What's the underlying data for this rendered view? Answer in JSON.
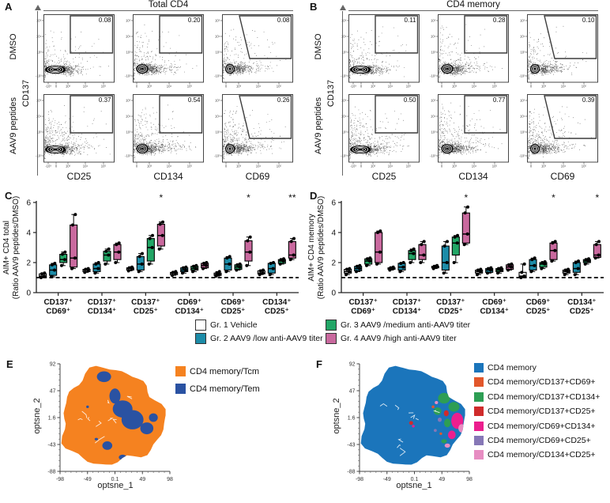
{
  "flow_panels": [
    {
      "label": "A",
      "title": "Total CD4",
      "y_marker": "CD137",
      "row_labels": [
        "DMSO",
        "AAV9 peptides"
      ],
      "x_labels": [
        "CD25",
        "CD134",
        "CD69"
      ],
      "gate_values": [
        [
          "0.08",
          "0.20",
          "0.08"
        ],
        [
          "0.37",
          "0.54",
          "0.26"
        ]
      ],
      "y_ticks": [
        "10⁵",
        "10⁴",
        "10³",
        "-10³"
      ],
      "x_ticks_first": [
        "-10³",
        "0",
        "10³",
        "10⁴",
        "10⁵"
      ],
      "x_ticks_rest": [
        "0",
        "10³",
        "10⁴",
        "10⁵"
      ]
    },
    {
      "label": "B",
      "title": "CD4 memory",
      "y_marker": "CD137",
      "row_labels": [
        "DMSO",
        "AAV9 peptides"
      ],
      "x_labels": [
        "CD25",
        "CD134",
        "CD69"
      ],
      "gate_values": [
        [
          "0.11",
          "0.28",
          "0.10"
        ],
        [
          "0.50",
          "0.77",
          "0.39"
        ]
      ],
      "y_ticks": [
        "10⁵",
        "10⁴",
        "10³",
        "-10³"
      ],
      "x_ticks_first": [
        "-10³",
        "0",
        "10³",
        "10⁴",
        "10⁵"
      ],
      "x_ticks_rest": [
        "0",
        "10³",
        "10⁴",
        "10⁵"
      ]
    }
  ],
  "group_legend": {
    "items": [
      {
        "label": "Gr. 1 Vehicle",
        "color": "#ffffff"
      },
      {
        "label": "Gr. 2 AAV9 /low anti-AAV9 titer",
        "color": "#1d8ca8"
      },
      {
        "label": "Gr. 3 AAV9 /medium anti-AAV9 titer",
        "color": "#22a666"
      },
      {
        "label": "Gr. 4 AAV9 /high anti-AAV9 titer",
        "color": "#c9699e"
      }
    ]
  },
  "chart_data": [
    {
      "type": "box",
      "panel": "C",
      "ylabel_line1": "AIM+ CD4 total",
      "ylabel_line2": "(Ratio AAV9 peptides/DMSO)",
      "ylim": [
        0,
        6
      ],
      "yticks": [
        0,
        2,
        4,
        6
      ],
      "reference_line": 1,
      "categories": [
        [
          "CD137⁺",
          "CD69⁺"
        ],
        [
          "CD137⁺",
          "CD134⁺"
        ],
        [
          "CD137⁺",
          "CD25⁺"
        ],
        [
          "CD69⁺",
          "CD134⁺"
        ],
        [
          "CD69⁺",
          "CD25⁺"
        ],
        [
          "CD134⁺",
          "CD25⁺"
        ]
      ],
      "series": [
        {
          "name": "Gr. 1 Vehicle",
          "color": "#ffffff",
          "boxes": [
            [
              1.0,
              1.05,
              1.1,
              1.25,
              1.3
            ],
            [
              1.35,
              1.4,
              1.5,
              1.55,
              1.6
            ],
            [
              1.45,
              1.5,
              1.6,
              1.65,
              1.7
            ],
            [
              1.15,
              1.2,
              1.3,
              1.35,
              1.4
            ],
            [
              1.1,
              1.15,
              1.2,
              1.3,
              1.4
            ],
            [
              1.2,
              1.25,
              1.3,
              1.45,
              1.5
            ]
          ]
        },
        {
          "name": "Gr. 2 AAV9 /low anti-AAV9 titer",
          "color": "#1d8ca8",
          "boxes": [
            [
              1.05,
              1.15,
              1.5,
              1.85,
              1.95
            ],
            [
              1.3,
              1.4,
              1.6,
              1.9,
              2.0
            ],
            [
              1.4,
              1.5,
              1.9,
              2.4,
              2.6
            ],
            [
              1.3,
              1.4,
              1.5,
              1.65,
              1.7
            ],
            [
              1.4,
              1.5,
              1.9,
              2.3,
              2.4
            ],
            [
              1.2,
              1.3,
              1.6,
              1.95,
              2.0
            ]
          ]
        },
        {
          "name": "Gr. 3 AAV9 /medium anti-AAV9 titer",
          "color": "#22a666",
          "boxes": [
            [
              1.8,
              2.0,
              2.2,
              2.55,
              2.7
            ],
            [
              1.9,
              2.1,
              2.5,
              2.75,
              2.9
            ],
            [
              1.9,
              2.1,
              3.0,
              3.6,
              3.8
            ],
            [
              1.4,
              1.5,
              1.6,
              1.75,
              1.8
            ],
            [
              1.5,
              1.55,
              1.7,
              1.85,
              1.9
            ],
            [
              1.9,
              1.95,
              2.1,
              2.2,
              2.25
            ]
          ]
        },
        {
          "name": "Gr. 4 AAV9 /high anti-AAV9 titer",
          "color": "#c9699e",
          "boxes": [
            [
              1.6,
              1.7,
              2.3,
              4.5,
              5.2
            ],
            [
              2.0,
              2.2,
              2.7,
              3.2,
              3.3
            ],
            [
              2.9,
              3.1,
              3.8,
              4.55,
              4.7
            ],
            [
              1.6,
              1.65,
              1.8,
              1.95,
              2.0
            ],
            [
              1.8,
              2.1,
              2.7,
              3.45,
              3.7
            ],
            [
              2.2,
              2.3,
              2.5,
              3.4,
              3.6
            ]
          ]
        }
      ],
      "significance": [
        {
          "group": 2,
          "label": "*"
        },
        {
          "group": 4,
          "label": "*"
        },
        {
          "group": 5,
          "label": "**"
        }
      ]
    },
    {
      "type": "box",
      "panel": "D",
      "ylabel_line1": "AIM+ CD4 memory",
      "ylabel_line2": "(Ratio AAV9 peptides/DMSO)",
      "ylim": [
        0,
        6
      ],
      "yticks": [
        0,
        2,
        4,
        6
      ],
      "reference_line": 1,
      "categories": [
        [
          "CD137⁺",
          "CD69⁺"
        ],
        [
          "CD137⁺",
          "CD134⁺"
        ],
        [
          "CD137⁺",
          "CD25⁺"
        ],
        [
          "CD69⁺",
          "CD134⁺"
        ],
        [
          "CD69⁺",
          "CD25⁺"
        ],
        [
          "CD134⁺",
          "CD25⁺"
        ]
      ],
      "series": [
        {
          "name": "Gr. 1 Vehicle",
          "color": "#ffffff",
          "boxes": [
            [
              1.2,
              1.3,
              1.4,
              1.55,
              1.6
            ],
            [
              1.5,
              1.55,
              1.6,
              1.65,
              1.7
            ],
            [
              1.6,
              1.65,
              1.7,
              1.75,
              1.8
            ],
            [
              1.2,
              1.3,
              1.4,
              1.5,
              1.55
            ],
            [
              1.0,
              1.05,
              1.1,
              1.35,
              1.9
            ],
            [
              1.2,
              1.3,
              1.4,
              1.5,
              1.55
            ]
          ]
        },
        {
          "name": "Gr. 2 AAV9 /low anti-AAV9 titer",
          "color": "#1d8ca8",
          "boxes": [
            [
              1.4,
              1.45,
              1.6,
              1.75,
              1.8
            ],
            [
              1.4,
              1.5,
              1.7,
              1.95,
              2.0
            ],
            [
              1.3,
              1.5,
              2.0,
              3.1,
              3.4
            ],
            [
              1.3,
              1.35,
              1.5,
              1.6,
              1.65
            ],
            [
              1.4,
              1.5,
              1.8,
              2.2,
              2.3
            ],
            [
              1.2,
              1.35,
              1.6,
              2.0,
              2.1
            ]
          ]
        },
        {
          "name": "Gr. 3 AAV9 /medium anti-AAV9 titer",
          "color": "#22a666",
          "boxes": [
            [
              1.8,
              1.9,
              2.1,
              2.25,
              2.3
            ],
            [
              2.0,
              2.2,
              2.6,
              2.8,
              2.9
            ],
            [
              2.0,
              2.5,
              3.3,
              3.7,
              3.8
            ],
            [
              1.3,
              1.4,
              1.5,
              1.6,
              1.65
            ],
            [
              1.6,
              1.7,
              1.9,
              2.0,
              2.05
            ],
            [
              1.9,
              2.0,
              2.1,
              2.2,
              2.25
            ]
          ]
        },
        {
          "name": "Gr. 4 AAV9 /high anti-AAV9 titer",
          "color": "#c9699e",
          "boxes": [
            [
              1.9,
              2.0,
              2.7,
              4.0,
              4.1
            ],
            [
              2.0,
              2.2,
              2.5,
              3.2,
              3.4
            ],
            [
              3.2,
              3.3,
              3.9,
              5.3,
              5.7
            ],
            [
              1.5,
              1.55,
              1.7,
              1.85,
              1.9
            ],
            [
              2.1,
              2.2,
              2.8,
              3.3,
              3.4
            ],
            [
              2.3,
              2.35,
              2.5,
              3.2,
              3.4
            ]
          ]
        }
      ],
      "significance": [
        {
          "group": 2,
          "label": "*"
        },
        {
          "group": 4,
          "label": "*"
        },
        {
          "group": 5,
          "label": "*"
        }
      ]
    },
    {
      "type": "scatter-density",
      "panel": "E",
      "xlabel": "optsne_1",
      "ylabel": "optsne_2",
      "xticks": [
        "-98",
        "-49",
        "0.1",
        "49",
        "98"
      ],
      "yticks": [
        "92",
        "47",
        "1.6",
        "-43",
        "-88"
      ],
      "legend": [
        {
          "label": "CD4 memory/Tcm",
          "color": "#f58220"
        },
        {
          "label": "CD4 memory/Tem",
          "color": "#2a52a2"
        }
      ]
    },
    {
      "type": "scatter-density",
      "panel": "F",
      "xlabel": "optsne_1",
      "ylabel": "optsne_2",
      "xticks": [
        "-98",
        "-49",
        "0.1",
        "49",
        "98"
      ],
      "yticks": [
        "92",
        "47",
        "1.6",
        "-43",
        "-88"
      ],
      "legend": [
        {
          "label": "CD4 memory",
          "color": "#1b75bb"
        },
        {
          "label": "CD4 memory/CD137+CD69+",
          "color": "#e2572b"
        },
        {
          "label": "CD4 memory/CD137+CD134+",
          "color": "#2d9e54"
        },
        {
          "label": "CD4 memory/CD137+CD25+",
          "color": "#cf2b2b"
        },
        {
          "label": "CD4 memory/CD69+CD134+",
          "color": "#ec1e8e"
        },
        {
          "label": "CD4 memory/CD69+CD25+",
          "color": "#8677b6"
        },
        {
          "label": "CD4 memory/CD134+CD25+",
          "color": "#e78dc2"
        }
      ]
    }
  ]
}
